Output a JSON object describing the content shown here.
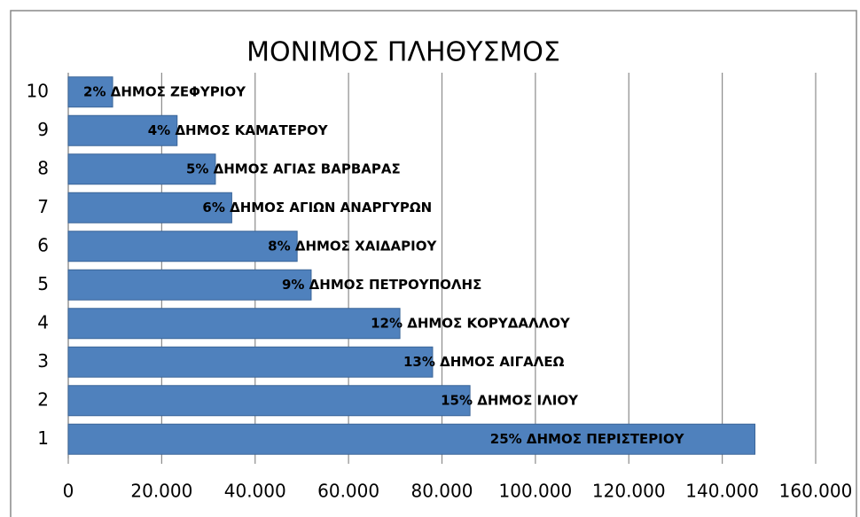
{
  "chart_data": {
    "type": "barh",
    "title": "ΜΟΝΙΜΟΣ ΠΛΗΘΥΣΜΟΣ",
    "categories": [
      "1",
      "2",
      "3",
      "4",
      "5",
      "6",
      "7",
      "8",
      "9",
      "10"
    ],
    "values": [
      147000,
      86000,
      78000,
      71000,
      52000,
      49000,
      35000,
      31500,
      23300,
      9500
    ],
    "bar_labels": [
      "25% ΔΗΜΟΣ ΠΕΡΙΣΤΕΡΙΟΥ",
      "15% ΔΗΜΟΣ ΙΛΙΟΥ",
      "13% ΔΗΜΟΣ ΑΙΓΑΛΕΩ",
      "12% ΔΗΜΟΣ ΚΟΡΥΔΑΛΛΟΥ",
      "9% ΔΗΜΟΣ ΠΕΤΡΟΥΠΟΛΗΣ",
      "8% ΔΗΜΟΣ ΧΑΙΔΑΡΙΟΥ",
      "6% ΔΗΜΟΣ ΑΓΙΩΝ ΑΝΑΡΓΥΡΩΝ",
      "5% ΔΗΜΟΣ ΑΓΙΑΣ ΒΑΡΒΑΡΑΣ",
      "4% ΔΗΜΟΣ ΚΑΜΑΤΕΡΟΥ",
      "2% ΔΗΜΟΣ ΖΕΦΥΡΙΟΥ"
    ],
    "color": "#4f81bd",
    "xlim": [
      0,
      160000
    ],
    "xticks": [
      0,
      {
        "value": 20000,
        "label": "20.000"
      },
      {
        "value": 40000,
        "label": "40.000"
      },
      {
        "value": 60000,
        "label": "60.000"
      },
      {
        "value": 80000,
        "label": "80.000"
      },
      {
        "value": 100000,
        "label": "100.000"
      },
      {
        "value": 120000,
        "label": "120.000"
      },
      {
        "value": 140000,
        "label": "140.000"
      },
      {
        "value": 160000,
        "label": "160.000"
      }
    ],
    "grid": true
  }
}
